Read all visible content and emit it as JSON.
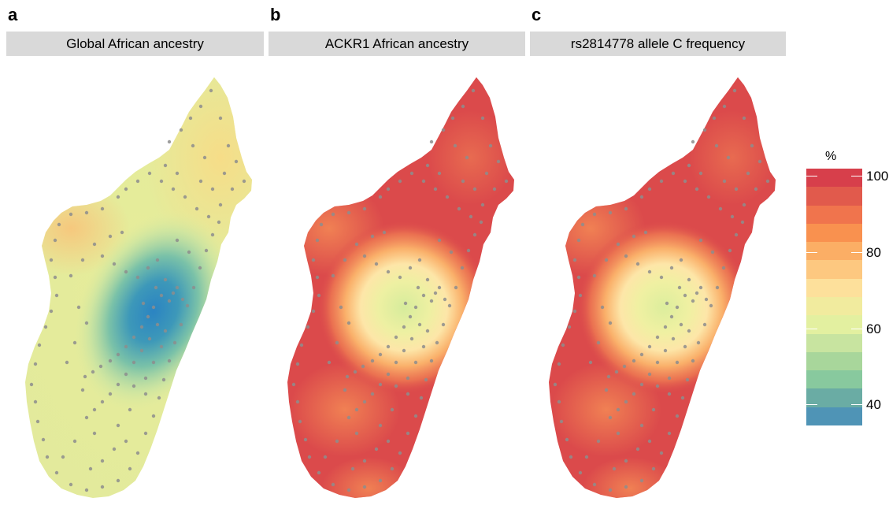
{
  "panels": [
    {
      "letter": "a",
      "title": "Global African ancestry"
    },
    {
      "letter": "b",
      "title": "ACKR1 African ancestry"
    },
    {
      "letter": "c",
      "title": "rs2814778 allele C frequency"
    }
  ],
  "legend": {
    "title": "%",
    "ticks": [
      "100",
      "80",
      "60",
      "40"
    ],
    "range": [
      35,
      101
    ],
    "colors": [
      "#d73f4b",
      "#e15a4c",
      "#f0744d",
      "#f9914f",
      "#fbae65",
      "#fdc880",
      "#fde09b",
      "#f1eb9e",
      "#e3f0a0",
      "#c8e4a0",
      "#a8d69b",
      "#88c99e",
      "#6aaca4",
      "#4f94b6"
    ]
  },
  "colors": {
    "map_a_base": "#e6ec9a",
    "map_a_north": "#f7dc87",
    "map_a_center": "#2b84c2",
    "map_bc_base": "#db4a4b",
    "map_bc_mid": "#f59a5d",
    "map_bc_center": "#d6ec9c",
    "sample_dots": "#8d8d8d"
  }
}
